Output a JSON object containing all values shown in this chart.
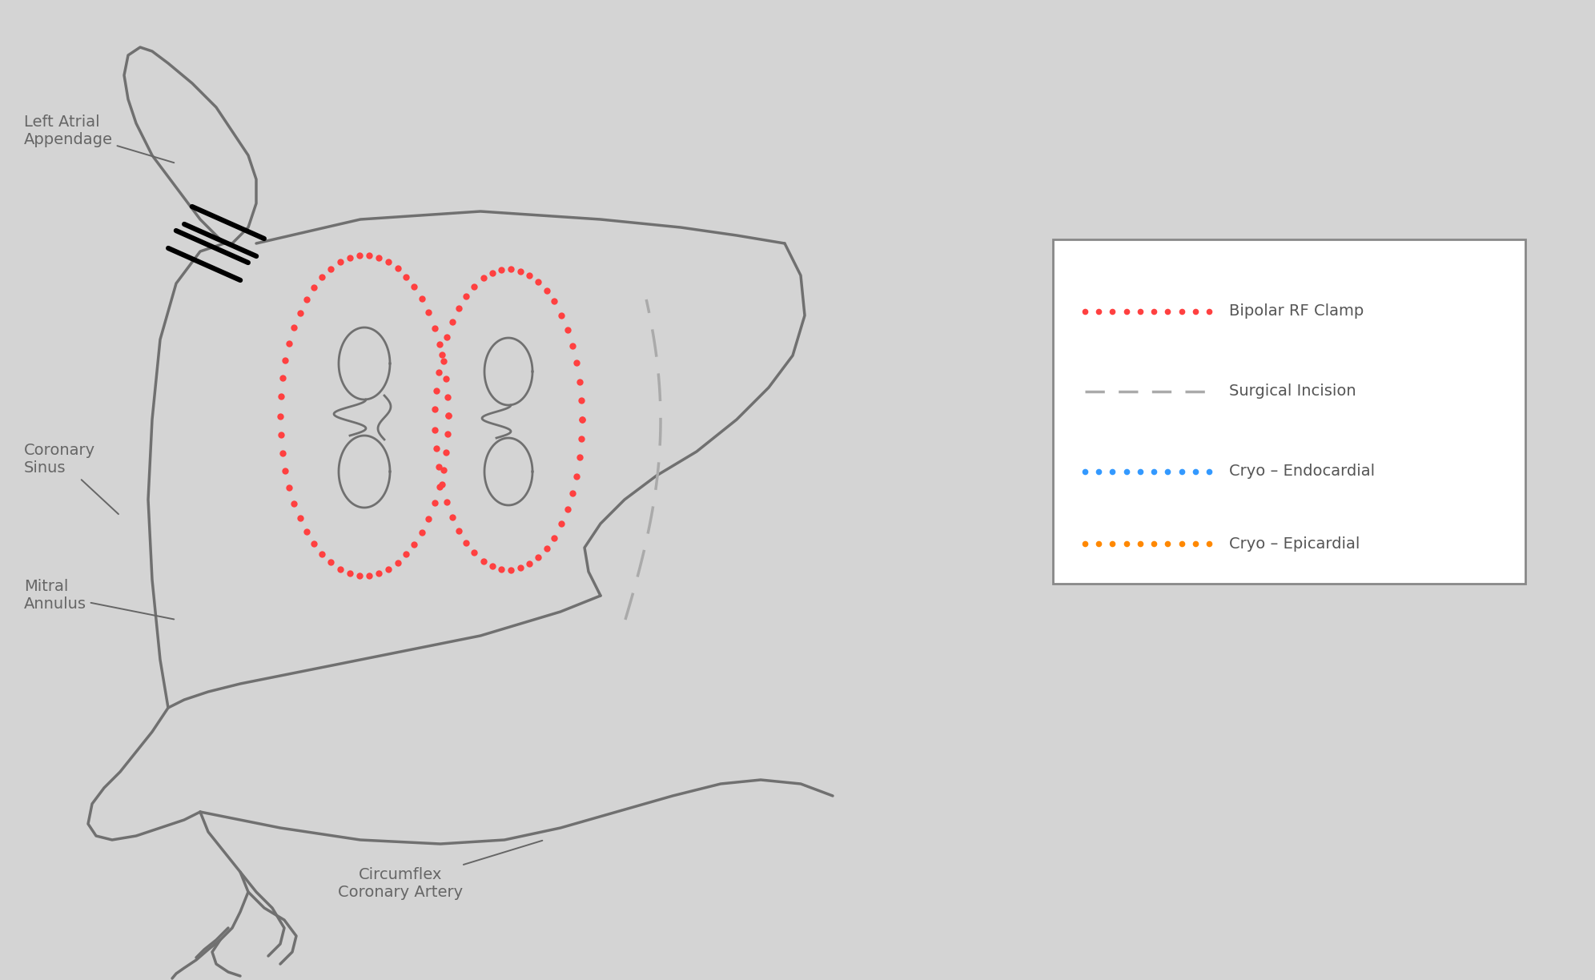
{
  "background_color": "#d4d4d4",
  "anatomy_color": "#707070",
  "anatomy_lw": 2.5,
  "red_dot_color": "#ff4040",
  "blue_dot_color": "#3399ff",
  "orange_dot_color": "#ff8800",
  "gray_dash_color": "#aaaaaa",
  "label_color": "#666666",
  "label_fontsize": 14,
  "legend_entries": [
    {
      "label": "Bipolar RF Clamp",
      "color": "#ff4040",
      "style": "dotted"
    },
    {
      "label": "Surgical Incision",
      "color": "#aaaaaa",
      "style": "dashed"
    },
    {
      "label": "Cryo – Endocardial",
      "color": "#3399ff",
      "style": "dotted"
    },
    {
      "label": "Cryo – Epicardial",
      "color": "#ff8800",
      "style": "dotted"
    }
  ]
}
